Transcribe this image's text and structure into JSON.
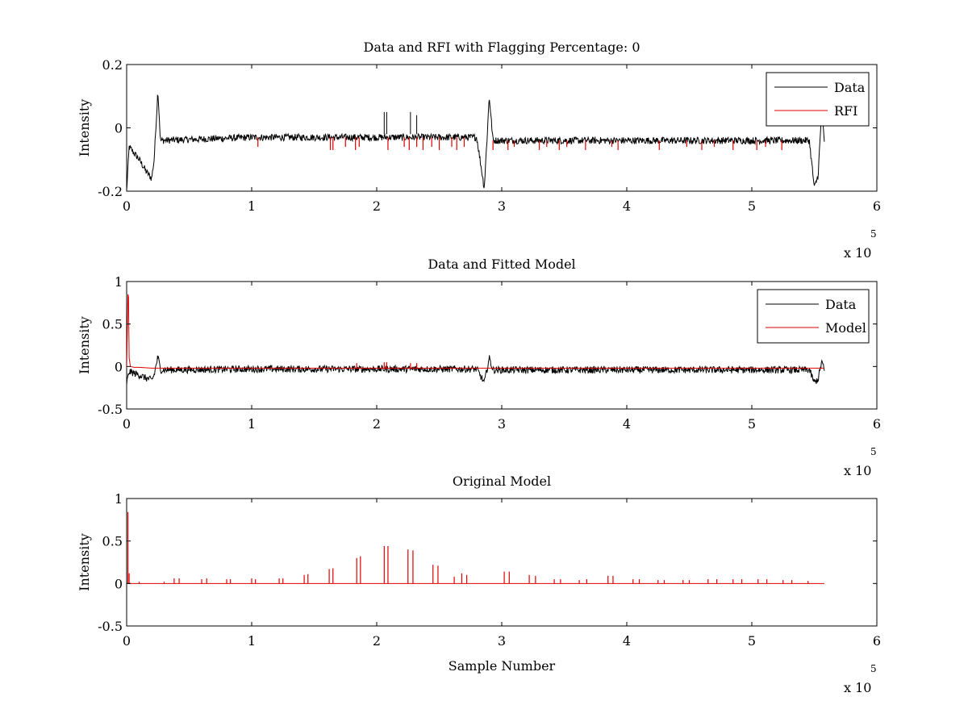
{
  "colors": {
    "data": "#000000",
    "red": "#e00000"
  },
  "chart_data": [
    {
      "type": "line",
      "title": "Data and RFI with Flagging Percentage: 0",
      "xlabel": "",
      "ylabel": "Intensity",
      "xlim": [
        0,
        6
      ],
      "ylim": [
        -0.2,
        0.2
      ],
      "x_multiplier": "x 10",
      "x_exponent": "5",
      "xticks": [
        "0",
        "1",
        "2",
        "3",
        "4",
        "5",
        "6"
      ],
      "yticks": [
        {
          "v": -0.2,
          "label": "-0.2"
        },
        {
          "v": 0,
          "label": "0"
        },
        {
          "v": 0.2,
          "label": "0.2"
        }
      ],
      "legend": {
        "position": "top-right",
        "entries": [
          {
            "label": "Data",
            "color": "#000000"
          },
          {
            "label": "RFI",
            "color": "#e00000"
          }
        ]
      },
      "series": [
        {
          "name": "Data",
          "color": "#000000",
          "style": "noise",
          "x": [
            0,
            0.02,
            0.1,
            0.16,
            0.2,
            0.22,
            0.25,
            0.27,
            1.0,
            2.0,
            2.8,
            2.86,
            2.88,
            2.9,
            2.93,
            4.0,
            5.0,
            5.46,
            5.5,
            5.53,
            5.56,
            5.58
          ],
          "y": [
            -0.2,
            -0.06,
            -0.1,
            -0.14,
            -0.16,
            -0.1,
            0.12,
            -0.04,
            -0.03,
            -0.03,
            -0.03,
            -0.19,
            -0.05,
            0.1,
            -0.04,
            -0.04,
            -0.04,
            -0.04,
            -0.19,
            -0.15,
            0.06,
            -0.05
          ]
        },
        {
          "name": "RFI",
          "color": "#e00000",
          "style": "spikes",
          "x": [
            1.05,
            1.63,
            1.65,
            1.75,
            1.83,
            1.86,
            2.09,
            2.22,
            2.26,
            2.32,
            2.37,
            2.44,
            2.5,
            2.6,
            2.64,
            2.7,
            2.93,
            3.05,
            3.1,
            3.3,
            3.36,
            3.46,
            3.52,
            3.67,
            3.88,
            3.93,
            4.26,
            4.48,
            4.6,
            4.7,
            4.85,
            5.04,
            5.11,
            5.24
          ],
          "y": [
            -0.06,
            -0.07,
            -0.07,
            -0.06,
            -0.07,
            -0.06,
            -0.07,
            -0.06,
            -0.07,
            -0.06,
            -0.07,
            -0.06,
            -0.07,
            -0.06,
            -0.07,
            -0.06,
            -0.07,
            -0.07,
            -0.06,
            -0.07,
            -0.06,
            -0.07,
            -0.06,
            -0.07,
            -0.06,
            -0.07,
            -0.07,
            -0.06,
            -0.07,
            -0.06,
            -0.07,
            -0.07,
            -0.06,
            -0.07
          ]
        }
      ],
      "annotations": [
        {
          "type": "spike",
          "x": 2.06,
          "y": 0.05
        },
        {
          "type": "spike",
          "x": 2.08,
          "y": 0.05
        },
        {
          "type": "spike",
          "x": 2.27,
          "y": 0.05
        },
        {
          "type": "spike",
          "x": 2.32,
          "y": 0.04
        }
      ]
    },
    {
      "type": "line",
      "title": "Data and Fitted Model",
      "xlabel": "",
      "ylabel": "Intensity",
      "xlim": [
        0,
        6
      ],
      "ylim": [
        -0.5,
        1
      ],
      "x_multiplier": "x 10",
      "x_exponent": "5",
      "xticks": [
        "0",
        "1",
        "2",
        "3",
        "4",
        "5",
        "6"
      ],
      "yticks": [
        {
          "v": -0.5,
          "label": "-0.5"
        },
        {
          "v": 0,
          "label": "0"
        },
        {
          "v": 0.5,
          "label": "0.5"
        },
        {
          "v": 1,
          "label": "1"
        }
      ],
      "legend": {
        "position": "top-right",
        "entries": [
          {
            "label": "Data",
            "color": "#000000"
          },
          {
            "label": "Model",
            "color": "#e00000"
          }
        ]
      },
      "series": [
        {
          "name": "Data",
          "color": "#000000",
          "style": "noise",
          "x": [
            0,
            0.02,
            0.1,
            0.16,
            0.2,
            0.22,
            0.25,
            0.27,
            1.0,
            2.0,
            2.8,
            2.86,
            2.88,
            2.9,
            2.93,
            4.0,
            5.0,
            5.46,
            5.5,
            5.53,
            5.56,
            5.58
          ],
          "y": [
            -0.2,
            -0.06,
            -0.1,
            -0.14,
            -0.16,
            -0.1,
            0.12,
            -0.04,
            -0.03,
            -0.03,
            -0.03,
            -0.19,
            -0.05,
            0.1,
            -0.04,
            -0.04,
            -0.04,
            -0.04,
            -0.19,
            -0.15,
            0.06,
            -0.05
          ]
        },
        {
          "name": "Model",
          "color": "#e00000",
          "style": "line",
          "x": [
            0,
            0.01,
            0.015,
            0.02,
            0.03,
            0.06,
            0.1,
            0.2,
            0.3,
            1.0,
            2.0,
            3.0,
            4.0,
            5.0,
            5.58
          ],
          "y": [
            -0.02,
            0.85,
            0.82,
            0.1,
            0.0,
            -0.01,
            -0.01,
            -0.02,
            -0.02,
            -0.02,
            -0.02,
            -0.02,
            -0.02,
            -0.02,
            -0.02
          ]
        },
        {
          "name": "Model",
          "color": "#e00000",
          "style": "spikes",
          "x": [
            1.84,
            2.06,
            2.08,
            2.27,
            2.32
          ],
          "y": [
            0.04,
            0.05,
            0.05,
            0.04,
            0.04
          ]
        }
      ]
    },
    {
      "type": "line",
      "title": "Original Model",
      "xlabel": "Sample Number",
      "ylabel": "Intensity",
      "xlim": [
        0,
        6
      ],
      "ylim": [
        -0.5,
        1
      ],
      "x_multiplier": "x 10",
      "x_exponent": "5",
      "xticks": [
        "0",
        "1",
        "2",
        "3",
        "4",
        "5",
        "6"
      ],
      "yticks": [
        {
          "v": -0.5,
          "label": "-0.5"
        },
        {
          "v": 0,
          "label": "0"
        },
        {
          "v": 0.5,
          "label": "0.5"
        },
        {
          "v": 1,
          "label": "1"
        }
      ],
      "series": [
        {
          "name": "Model",
          "color": "#e00000",
          "style": "spikes",
          "baseline": 0,
          "xend": 5.58,
          "x": [
            0.01,
            0.02,
            0.1,
            0.3,
            0.38,
            0.42,
            0.6,
            0.64,
            0.8,
            0.83,
            1.0,
            1.03,
            1.22,
            1.25,
            1.42,
            1.45,
            1.62,
            1.65,
            1.84,
            1.87,
            2.06,
            2.09,
            2.25,
            2.29,
            2.45,
            2.49,
            2.62,
            2.68,
            2.72,
            3.02,
            3.06,
            3.22,
            3.27,
            3.42,
            3.47,
            3.62,
            3.68,
            3.85,
            3.89,
            4.05,
            4.1,
            4.25,
            4.3,
            4.45,
            4.5,
            4.65,
            4.72,
            4.85,
            4.92,
            5.05,
            5.12,
            5.25,
            5.32,
            5.45
          ],
          "y": [
            0.84,
            0.12,
            0.02,
            0.02,
            0.06,
            0.06,
            0.05,
            0.06,
            0.05,
            0.05,
            0.06,
            0.05,
            0.06,
            0.06,
            0.1,
            0.11,
            0.17,
            0.18,
            0.3,
            0.32,
            0.44,
            0.44,
            0.4,
            0.39,
            0.22,
            0.21,
            0.08,
            0.12,
            0.1,
            0.14,
            0.14,
            0.1,
            0.09,
            0.05,
            0.05,
            0.04,
            0.05,
            0.09,
            0.09,
            0.05,
            0.05,
            0.04,
            0.04,
            0.04,
            0.04,
            0.05,
            0.05,
            0.05,
            0.05,
            0.05,
            0.05,
            0.04,
            0.04,
            0.03
          ]
        }
      ]
    }
  ]
}
